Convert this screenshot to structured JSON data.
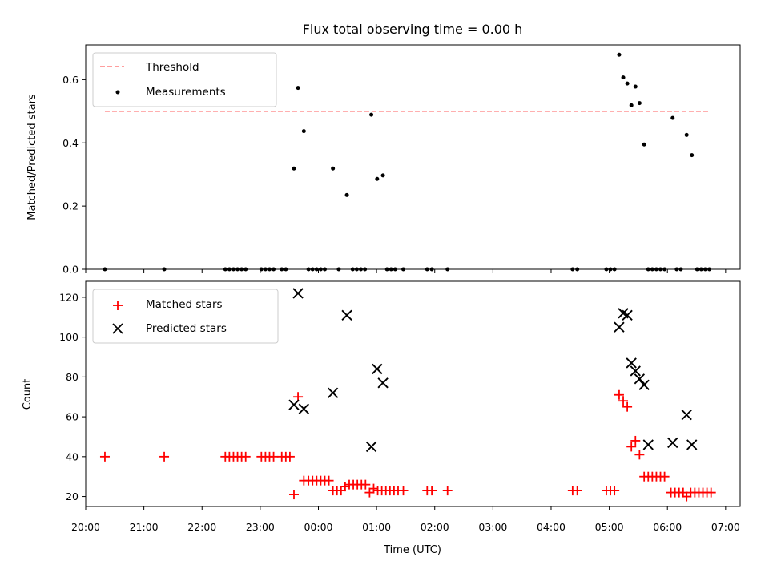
{
  "chart_data": [
    {
      "type": "scatter",
      "title": "Flux total observing time = 0.00 h",
      "xlabel": "",
      "ylabel": "Matched/Predicted stars",
      "ylim": [
        0,
        0.71
      ],
      "yticks": [
        "0.0",
        "0.2",
        "0.4",
        "0.6"
      ],
      "ytick_values": [
        0.0,
        0.2,
        0.4,
        0.6
      ],
      "legend_position": "upper-left",
      "threshold": {
        "name": "Threshold",
        "value": 0.5,
        "x_range": [
          20.33,
          30.72
        ],
        "color": "#ff7f7f",
        "style": "dashed"
      },
      "series": [
        {
          "name": "Measurements",
          "color": "#000000",
          "marker": "dot",
          "x": [
            20.33,
            21.35,
            22.4,
            22.47,
            22.54,
            22.61,
            22.68,
            22.75,
            23.02,
            23.09,
            23.16,
            23.23,
            23.37,
            23.44,
            23.58,
            23.65,
            23.75,
            23.83,
            23.9,
            23.97,
            24.04,
            24.11,
            24.25,
            24.35,
            24.49,
            24.59,
            24.66,
            24.73,
            24.8,
            24.91,
            25.01,
            25.11,
            25.18,
            25.25,
            25.32,
            25.46,
            25.87,
            25.95,
            26.22,
            28.37,
            28.45,
            28.95,
            29.02,
            29.09,
            29.17,
            29.24,
            29.31,
            29.38,
            29.45,
            29.52,
            29.6,
            29.67,
            29.74,
            29.81,
            29.88,
            29.95,
            30.09,
            30.16,
            30.23,
            30.33,
            30.42,
            30.51,
            30.58,
            30.65,
            30.72
          ],
          "y": [
            0,
            0,
            0,
            0,
            0,
            0,
            0,
            0,
            0,
            0,
            0,
            0,
            0,
            0,
            0.319,
            0.574,
            0.437,
            0,
            0,
            0,
            0,
            0,
            0.319,
            0,
            0.235,
            0,
            0,
            0,
            0,
            0.489,
            0.286,
            0.297,
            0,
            0,
            0,
            0,
            0,
            0,
            0,
            0,
            0,
            0,
            0,
            0,
            0.679,
            0.607,
            0.588,
            0.519,
            0.578,
            0.526,
            0.395,
            0,
            0,
            0,
            0,
            0,
            0.479,
            0,
            0,
            0.425,
            0.361,
            0,
            0,
            0,
            0
          ]
        }
      ]
    },
    {
      "type": "scatter",
      "title": "",
      "xlabel": "Time (UTC)",
      "ylabel": "Count",
      "ylim": [
        15,
        128
      ],
      "yticks": [
        "20",
        "40",
        "60",
        "80",
        "100",
        "120"
      ],
      "ytick_values": [
        20,
        40,
        60,
        80,
        100,
        120
      ],
      "xlim": [
        20.0,
        31.25
      ],
      "xticks": [
        "20:00",
        "21:00",
        "22:00",
        "23:00",
        "00:00",
        "01:00",
        "02:00",
        "03:00",
        "04:00",
        "05:00",
        "06:00",
        "07:00"
      ],
      "xtick_values": [
        20,
        21,
        22,
        23,
        24,
        25,
        26,
        27,
        28,
        29,
        30,
        31
      ],
      "legend_position": "upper-left",
      "series": [
        {
          "name": "Matched stars",
          "color": "#ff0000",
          "marker": "plus",
          "x": [
            20.33,
            21.35,
            22.4,
            22.47,
            22.54,
            22.61,
            22.68,
            22.75,
            23.02,
            23.09,
            23.16,
            23.23,
            23.37,
            23.44,
            23.51,
            23.58,
            23.65,
            23.75,
            23.83,
            23.9,
            23.97,
            24.04,
            24.11,
            24.18,
            24.25,
            24.32,
            24.39,
            24.46,
            24.53,
            24.6,
            24.67,
            24.74,
            24.81,
            24.88,
            24.95,
            25.02,
            25.09,
            25.16,
            25.23,
            25.3,
            25.37,
            25.46,
            25.87,
            25.95,
            26.22,
            28.37,
            28.45,
            28.95,
            29.02,
            29.09,
            29.17,
            29.24,
            29.31,
            29.38,
            29.45,
            29.52,
            29.6,
            29.67,
            29.74,
            29.81,
            29.88,
            29.95,
            30.06,
            30.13,
            30.2,
            30.27,
            30.33,
            30.4,
            30.47,
            30.54,
            30.61,
            30.68,
            30.75
          ],
          "y": [
            40,
            40,
            40,
            40,
            40,
            40,
            40,
            40,
            40,
            40,
            40,
            40,
            40,
            40,
            40,
            21,
            70,
            28,
            28,
            28,
            28,
            28,
            28,
            28,
            23,
            23,
            23,
            25,
            26,
            26,
            26,
            26,
            26,
            22,
            24,
            23,
            23,
            23,
            23,
            23,
            23,
            23,
            23,
            23,
            23,
            23,
            23,
            23,
            23,
            23,
            71,
            68,
            65,
            45,
            48,
            41,
            30,
            30,
            30,
            30,
            30,
            30,
            22,
            22,
            22,
            22,
            20,
            22,
            22,
            22,
            22,
            22,
            22
          ]
        },
        {
          "name": "Predicted stars",
          "color": "#000000",
          "marker": "x",
          "x": [
            23.58,
            23.65,
            23.75,
            24.25,
            24.49,
            24.91,
            25.01,
            25.11,
            29.17,
            29.24,
            29.31,
            29.38,
            29.45,
            29.52,
            29.6,
            29.67,
            30.09,
            30.33,
            30.42
          ],
          "y": [
            66,
            122,
            64,
            72,
            111,
            45,
            84,
            77,
            105,
            112,
            111,
            87,
            83,
            79,
            76,
            46,
            47,
            61,
            46
          ]
        }
      ]
    }
  ]
}
